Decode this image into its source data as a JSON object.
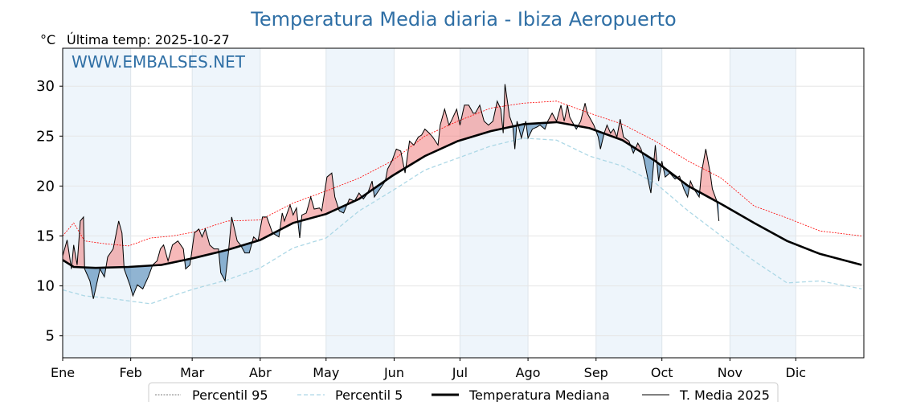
{
  "chart_data": {
    "type": "line",
    "title": "Temperatura Media diaria - Ibiza Aeropuerto",
    "unit_label": "°C",
    "subtitle": "Última temp: 2025-10-27",
    "watermark": "WWW.EMBALSES.NET",
    "xlabel": "",
    "ylabel": "°C",
    "xlim": [
      0,
      365
    ],
    "ylim": [
      2.8,
      33.8
    ],
    "yticks": [
      5,
      10,
      15,
      20,
      25,
      30
    ],
    "months": [
      {
        "label": "Ene",
        "day": 0
      },
      {
        "label": "Feb",
        "day": 31
      },
      {
        "label": "Mar",
        "day": 59
      },
      {
        "label": "Abr",
        "day": 90
      },
      {
        "label": "May",
        "day": 120
      },
      {
        "label": "Jun",
        "day": 151
      },
      {
        "label": "Jul",
        "day": 181
      },
      {
        "label": "Ago",
        "day": 212
      },
      {
        "label": "Sep",
        "day": 243
      },
      {
        "label": "Oct",
        "day": 273
      },
      {
        "label": "Nov",
        "day": 304
      },
      {
        "label": "Dic",
        "day": 334
      }
    ],
    "grid": true,
    "legend_position": "bottom-center",
    "colors": {
      "p95": "#ff0000",
      "p5": "#add8e6",
      "median": "#000000",
      "current": "#000000",
      "above": "#f08080",
      "below": "#4682b4",
      "band": "#eef5fb",
      "title": "#2f6fa5"
    },
    "series": [
      {
        "name": "Percentil 95",
        "points": [
          [
            0,
            15.0
          ],
          [
            5,
            16.3
          ],
          [
            10,
            14.5
          ],
          [
            20,
            14.2
          ],
          [
            30,
            14.0
          ],
          [
            40,
            14.8
          ],
          [
            50,
            15.0
          ],
          [
            60,
            15.4
          ],
          [
            75,
            16.5
          ],
          [
            90,
            16.6
          ],
          [
            105,
            18.3
          ],
          [
            120,
            19.5
          ],
          [
            135,
            20.8
          ],
          [
            150,
            22.5
          ],
          [
            165,
            25.0
          ],
          [
            180,
            26.5
          ],
          [
            195,
            27.8
          ],
          [
            210,
            28.3
          ],
          [
            225,
            28.5
          ],
          [
            240,
            27.3
          ],
          [
            255,
            26.2
          ],
          [
            270,
            24.5
          ],
          [
            285,
            22.5
          ],
          [
            300,
            20.8
          ],
          [
            315,
            18.0
          ],
          [
            330,
            16.8
          ],
          [
            345,
            15.5
          ],
          [
            364,
            15.0
          ]
        ]
      },
      {
        "name": "Percentil 5",
        "points": [
          [
            0,
            9.6
          ],
          [
            10,
            9.0
          ],
          [
            20,
            8.8
          ],
          [
            30,
            8.5
          ],
          [
            40,
            8.2
          ],
          [
            50,
            9.0
          ],
          [
            60,
            9.7
          ],
          [
            75,
            10.6
          ],
          [
            90,
            11.8
          ],
          [
            105,
            13.8
          ],
          [
            120,
            14.8
          ],
          [
            135,
            17.5
          ],
          [
            150,
            19.5
          ],
          [
            165,
            21.6
          ],
          [
            180,
            22.8
          ],
          [
            195,
            24.0
          ],
          [
            210,
            24.8
          ],
          [
            225,
            24.6
          ],
          [
            240,
            23.0
          ],
          [
            255,
            22.0
          ],
          [
            270,
            20.3
          ],
          [
            285,
            17.5
          ],
          [
            300,
            15.0
          ],
          [
            315,
            12.5
          ],
          [
            330,
            10.3
          ],
          [
            345,
            10.5
          ],
          [
            364,
            9.7
          ]
        ]
      },
      {
        "name": "Temperatura Mediana",
        "points": [
          [
            0,
            12.6
          ],
          [
            5,
            11.9
          ],
          [
            15,
            11.8
          ],
          [
            30,
            11.9
          ],
          [
            45,
            12.1
          ],
          [
            60,
            12.8
          ],
          [
            75,
            13.6
          ],
          [
            90,
            14.6
          ],
          [
            105,
            16.3
          ],
          [
            120,
            17.2
          ],
          [
            135,
            18.7
          ],
          [
            150,
            21.0
          ],
          [
            165,
            23.0
          ],
          [
            180,
            24.5
          ],
          [
            195,
            25.5
          ],
          [
            210,
            26.2
          ],
          [
            225,
            26.4
          ],
          [
            240,
            25.8
          ],
          [
            255,
            24.6
          ],
          [
            270,
            22.5
          ],
          [
            285,
            20.0
          ],
          [
            300,
            18.2
          ],
          [
            315,
            16.3
          ],
          [
            330,
            14.5
          ],
          [
            345,
            13.2
          ],
          [
            364,
            12.1
          ]
        ]
      },
      {
        "name": "T. Media 2025",
        "points": [
          [
            0,
            13.0
          ],
          [
            2,
            14.6
          ],
          [
            4,
            11.7
          ],
          [
            5,
            14.1
          ],
          [
            6.6,
            12.1
          ],
          [
            8,
            16.5
          ],
          [
            9.5,
            16.9
          ],
          [
            10,
            11.7
          ],
          [
            12.4,
            10.5
          ],
          [
            14,
            8.7
          ],
          [
            15,
            9.7
          ],
          [
            17,
            11.7
          ],
          [
            19,
            10.9
          ],
          [
            20.5,
            12.9
          ],
          [
            23,
            13.7
          ],
          [
            25.5,
            16.5
          ],
          [
            27,
            15.3
          ],
          [
            28,
            11.7
          ],
          [
            30.6,
            10.1
          ],
          [
            32,
            9.0
          ],
          [
            34,
            10.1
          ],
          [
            36.5,
            9.7
          ],
          [
            39,
            10.9
          ],
          [
            41,
            12.1
          ],
          [
            43,
            12.5
          ],
          [
            44.5,
            13.7
          ],
          [
            46,
            14.1
          ],
          [
            48,
            12.5
          ],
          [
            50,
            14.1
          ],
          [
            52.5,
            14.5
          ],
          [
            55,
            13.7
          ],
          [
            56,
            11.7
          ],
          [
            58,
            12.1
          ],
          [
            60,
            15.3
          ],
          [
            62,
            15.7
          ],
          [
            63.5,
            14.9
          ],
          [
            65,
            15.7
          ],
          [
            67,
            14.1
          ],
          [
            69,
            13.7
          ],
          [
            71,
            13.7
          ],
          [
            72,
            11.3
          ],
          [
            74,
            10.5
          ],
          [
            75.5,
            13.3
          ],
          [
            77,
            16.9
          ],
          [
            79.5,
            14.5
          ],
          [
            81,
            14.1
          ],
          [
            83,
            13.3
          ],
          [
            85,
            13.3
          ],
          [
            87,
            14.9
          ],
          [
            89,
            14.5
          ],
          [
            91,
            16.9
          ],
          [
            93,
            16.9
          ],
          [
            95.6,
            15.3
          ],
          [
            98.5,
            14.9
          ],
          [
            100,
            17.3
          ],
          [
            101,
            16.5
          ],
          [
            103.6,
            18.1
          ],
          [
            105,
            17.1
          ],
          [
            106.5,
            17.8
          ],
          [
            108,
            14.8
          ],
          [
            109,
            17.1
          ],
          [
            111,
            17.3
          ],
          [
            113,
            18.9
          ],
          [
            114.6,
            17.7
          ],
          [
            117,
            17.8
          ],
          [
            118,
            17.5
          ],
          [
            120.4,
            20.9
          ],
          [
            122.6,
            21.3
          ],
          [
            124,
            18.9
          ],
          [
            126,
            17.5
          ],
          [
            128,
            17.3
          ],
          [
            130.6,
            18.7
          ],
          [
            133,
            18.5
          ],
          [
            135,
            19.3
          ],
          [
            137,
            18.7
          ],
          [
            139,
            19.3
          ],
          [
            141,
            20.5
          ],
          [
            142,
            18.9
          ],
          [
            144.5,
            19.7
          ],
          [
            147,
            20.5
          ],
          [
            148,
            21.7
          ],
          [
            150,
            22.5
          ],
          [
            152,
            23.7
          ],
          [
            154,
            23.5
          ],
          [
            156,
            21.3
          ],
          [
            158,
            24.5
          ],
          [
            160,
            24.1
          ],
          [
            162,
            24.9
          ],
          [
            163.5,
            25.1
          ],
          [
            165,
            25.7
          ],
          [
            167,
            25.3
          ],
          [
            168.6,
            24.9
          ],
          [
            171,
            24.1
          ],
          [
            172,
            26.1
          ],
          [
            174,
            27.7
          ],
          [
            176,
            26.1
          ],
          [
            177,
            26.5
          ],
          [
            179.5,
            27.7
          ],
          [
            181,
            26.1
          ],
          [
            183,
            28.1
          ],
          [
            185,
            28.1
          ],
          [
            187,
            27.3
          ],
          [
            188,
            27.3
          ],
          [
            190,
            28.1
          ],
          [
            192,
            26.5
          ],
          [
            194,
            26.1
          ],
          [
            196,
            26.5
          ],
          [
            198,
            28.5
          ],
          [
            199.6,
            27.7
          ],
          [
            200.7,
            25.3
          ],
          [
            201.5,
            30.2
          ],
          [
            203.6,
            27.0
          ],
          [
            205,
            26.1
          ],
          [
            206,
            23.7
          ],
          [
            207,
            26.5
          ],
          [
            209,
            24.8
          ],
          [
            211,
            26.5
          ],
          [
            212,
            24.8
          ],
          [
            214,
            25.7
          ],
          [
            216,
            25.9
          ],
          [
            217.5,
            26.1
          ],
          [
            219.7,
            25.7
          ],
          [
            221,
            26.5
          ],
          [
            223,
            27.3
          ],
          [
            225,
            26.5
          ],
          [
            227,
            28.1
          ],
          [
            228.5,
            26.5
          ],
          [
            230,
            28.1
          ],
          [
            231,
            26.9
          ],
          [
            233,
            26.1
          ],
          [
            234,
            25.7
          ],
          [
            236,
            26.5
          ],
          [
            238,
            28.3
          ],
          [
            239,
            27.3
          ],
          [
            241,
            26.5
          ],
          [
            242,
            26.1
          ],
          [
            244,
            24.9
          ],
          [
            245,
            23.7
          ],
          [
            246.7,
            25.3
          ],
          [
            248,
            26.1
          ],
          [
            249.6,
            25.3
          ],
          [
            251,
            25.7
          ],
          [
            252.5,
            24.9
          ],
          [
            254,
            26.7
          ],
          [
            255.5,
            24.9
          ],
          [
            258,
            24.5
          ],
          [
            260,
            23.3
          ],
          [
            262,
            24.3
          ],
          [
            263.5,
            23.7
          ],
          [
            265,
            22.5
          ],
          [
            267,
            20.3
          ],
          [
            268,
            19.3
          ],
          [
            269,
            21.7
          ],
          [
            270,
            24.1
          ],
          [
            271.5,
            20.5
          ],
          [
            273,
            22.5
          ],
          [
            274.5,
            20.9
          ],
          [
            276.6,
            21.3
          ],
          [
            279,
            20.7
          ],
          [
            281,
            21.0
          ],
          [
            283,
            19.7
          ],
          [
            284.7,
            18.9
          ],
          [
            286,
            20.5
          ],
          [
            287.6,
            19.7
          ],
          [
            290,
            18.9
          ],
          [
            291,
            21.3
          ],
          [
            293,
            23.7
          ],
          [
            295,
            21.3
          ],
          [
            296,
            19.7
          ],
          [
            298,
            18.5
          ],
          [
            299,
            16.5
          ]
        ]
      }
    ]
  }
}
